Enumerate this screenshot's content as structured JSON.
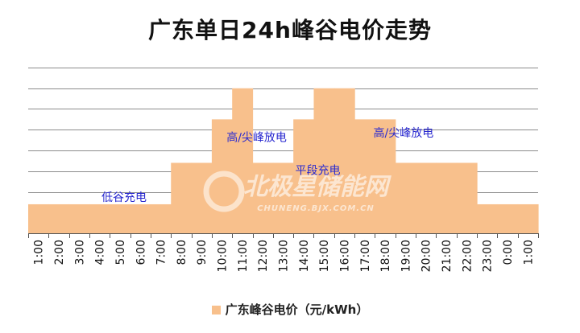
{
  "chart_data": {
    "type": "area",
    "title": "广东单日24h峰谷电价走势",
    "categories": [
      "1:00",
      "2:00",
      "3:00",
      "4:00",
      "5:00",
      "6:00",
      "7:00",
      "8:00",
      "9:00",
      "10:00",
      "11:00",
      "12:00",
      "13:00",
      "14:00",
      "15:00",
      "16:00",
      "17:00",
      "18:00",
      "19:00",
      "20:00",
      "21:00",
      "22:00",
      "23:00",
      "0:00",
      "1:00"
    ],
    "series": [
      {
        "name": "广东峰谷电价（元/kWh）",
        "color": "#f8c08c",
        "values": [
          0.28,
          0.28,
          0.28,
          0.28,
          0.28,
          0.28,
          0.28,
          0.68,
          0.68,
          1.1,
          1.4,
          0.68,
          0.68,
          1.1,
          1.4,
          1.4,
          1.1,
          1.1,
          0.68,
          0.68,
          0.68,
          0.68,
          0.28,
          0.28,
          0.28
        ]
      }
    ],
    "annotations": [
      {
        "text": "低谷充电",
        "x": 4.7,
        "y": 0.28
      },
      {
        "text": "高/尖峰放电",
        "x": 11.2,
        "y": 0.86
      },
      {
        "text": "平段充电",
        "x": 14.2,
        "y": 0.54
      },
      {
        "text": "高/尖峰放电",
        "x": 18.4,
        "y": 0.9
      }
    ],
    "annotation_color": "#2a2ad0",
    "ylim": [
      0,
      1.6
    ],
    "y_gridlines": 8,
    "grid": true,
    "legend": "bottom",
    "watermark": "北极星储能网",
    "watermark_sub": "CHUNENG.BJX.COM.CN"
  }
}
